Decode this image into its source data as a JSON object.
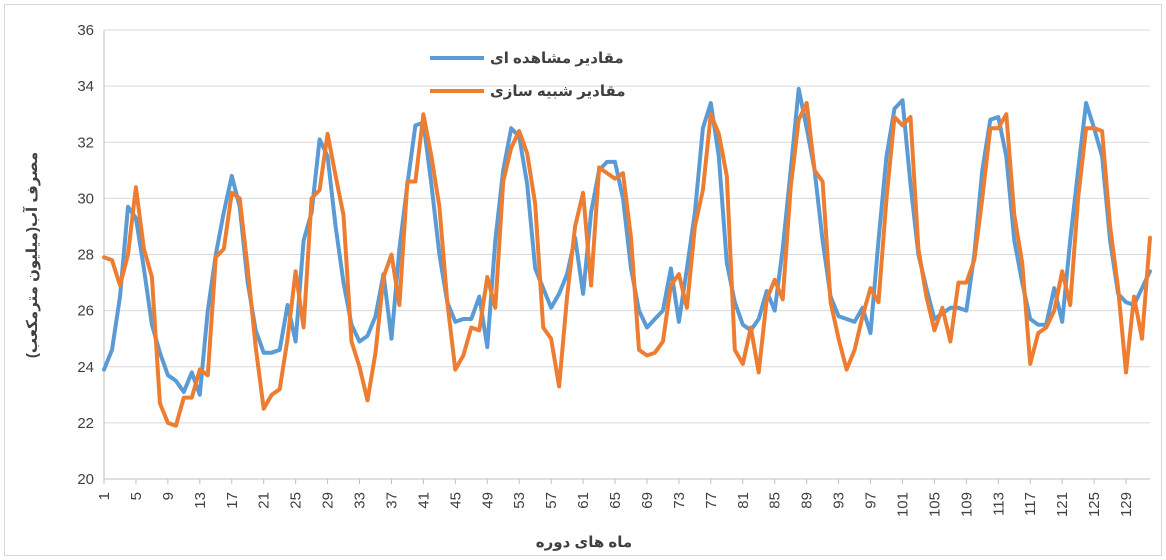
{
  "chart_data": {
    "type": "line",
    "y_label": "مصرف آب(میلیون مترمکعب)",
    "x_label": "ماه های دوره",
    "legend": "top",
    "grid": true,
    "ylim": [
      20,
      36
    ],
    "yticks": [
      20,
      22,
      24,
      26,
      28,
      30,
      32,
      34,
      36
    ],
    "categories": [
      1,
      null,
      null,
      null,
      5,
      null,
      null,
      null,
      9,
      null,
      null,
      null,
      13,
      null,
      null,
      null,
      17,
      null,
      null,
      null,
      21,
      null,
      null,
      null,
      25,
      null,
      null,
      null,
      29,
      null,
      null,
      null,
      33,
      null,
      null,
      null,
      37,
      null,
      null,
      null,
      41,
      null,
      null,
      null,
      45,
      null,
      null,
      null,
      49,
      null,
      null,
      null,
      53,
      null,
      null,
      null,
      57,
      null,
      null,
      null,
      61,
      null,
      null,
      null,
      65,
      null,
      null,
      null,
      69,
      null,
      null,
      null,
      73,
      null,
      null,
      null,
      77,
      null,
      null,
      null,
      81,
      null,
      null,
      null,
      85,
      null,
      null,
      null,
      89,
      null,
      null,
      null,
      93,
      null,
      null,
      null,
      97,
      null,
      null,
      null,
      101,
      null,
      null,
      null,
      105,
      null,
      null,
      null,
      109,
      null,
      null,
      null,
      113,
      null,
      null,
      null,
      117,
      null,
      null,
      null,
      121,
      null,
      null,
      null,
      125,
      null,
      null,
      null,
      129,
      null,
      null,
      null
    ],
    "series": [
      {
        "name": "مقادیر مشاهده ای",
        "color": "#5b9bd5",
        "values": [
          23.9,
          24.6,
          26.5,
          29.7,
          29.3,
          27.5,
          25.5,
          24.5,
          23.7,
          23.5,
          23.1,
          23.8,
          23.0,
          26.0,
          28.0,
          29.5,
          30.8,
          29.7,
          27.0,
          25.3,
          24.5,
          24.5,
          24.6,
          26.2,
          24.9,
          28.5,
          29.5,
          32.1,
          31.5,
          29.0,
          27.0,
          25.5,
          24.9,
          25.1,
          25.8,
          27.3,
          25.0,
          28.2,
          30.5,
          32.6,
          32.7,
          30.5,
          28.0,
          26.3,
          25.6,
          25.7,
          25.7,
          26.5,
          24.7,
          28.5,
          31.0,
          32.5,
          32.2,
          30.5,
          27.5,
          26.8,
          26.1,
          26.6,
          27.3,
          28.6,
          26.6,
          29.5,
          31.0,
          31.3,
          31.3,
          30.0,
          27.5,
          26.0,
          25.4,
          25.7,
          26.0,
          27.5,
          25.6,
          27.5,
          29.5,
          32.5,
          33.4,
          31.5,
          27.7,
          26.3,
          25.5,
          25.3,
          25.7,
          26.7,
          26.0,
          28.2,
          31.0,
          33.9,
          32.5,
          31.0,
          28.5,
          26.5,
          25.8,
          25.7,
          25.6,
          26.1,
          25.2,
          28.5,
          31.5,
          33.2,
          33.5,
          30.5,
          28.0,
          26.8,
          25.7,
          25.9,
          26.1,
          26.1,
          26.0,
          28.0,
          31.0,
          32.8,
          32.9,
          31.5,
          28.5,
          27.0,
          25.7,
          25.5,
          25.5,
          26.8,
          25.6,
          28.5,
          31.0,
          33.4,
          32.5,
          31.5,
          28.5,
          26.6,
          26.3,
          26.2,
          26.8,
          27.4
        ]
      },
      {
        "name": "مقادیر شبیه سازی",
        "color": "#ed7d31",
        "values": [
          27.9,
          27.8,
          26.9,
          28.0,
          30.4,
          28.2,
          27.2,
          22.7,
          22.0,
          21.9,
          22.9,
          22.9,
          23.9,
          23.7,
          27.9,
          28.2,
          30.2,
          30.0,
          27.5,
          24.7,
          22.5,
          23.0,
          23.2,
          25.0,
          27.4,
          25.4,
          30.0,
          30.3,
          32.3,
          30.8,
          29.4,
          24.9,
          24.0,
          22.8,
          24.5,
          27.2,
          28.0,
          26.2,
          30.6,
          30.6,
          33.0,
          31.5,
          29.7,
          26.3,
          23.9,
          24.4,
          25.4,
          25.3,
          27.2,
          26.1,
          30.6,
          31.8,
          32.4,
          31.6,
          29.8,
          25.4,
          25.0,
          23.3,
          26.5,
          29.0,
          30.2,
          26.9,
          31.1,
          30.9,
          30.7,
          30.9,
          28.6,
          24.6,
          24.4,
          24.5,
          24.9,
          26.9,
          27.3,
          26.1,
          29.0,
          30.3,
          33.0,
          32.3,
          30.8,
          24.6,
          24.1,
          25.4,
          23.8,
          26.4,
          27.1,
          26.4,
          30.4,
          32.8,
          33.4,
          31.0,
          30.6,
          26.3,
          25.0,
          23.9,
          24.6,
          25.8,
          26.8,
          26.3,
          30.0,
          32.9,
          32.6,
          32.9,
          28.2,
          26.5,
          25.3,
          26.1,
          24.9,
          27.0,
          27.0,
          27.8,
          30.0,
          32.5,
          32.5,
          33.0,
          29.4,
          27.7,
          24.1,
          25.2,
          25.4,
          26.0,
          27.4,
          26.2,
          30.0,
          32.5,
          32.5,
          32.4,
          29.0,
          26.8,
          23.8,
          26.5,
          25.0,
          28.6
        ]
      }
    ]
  }
}
